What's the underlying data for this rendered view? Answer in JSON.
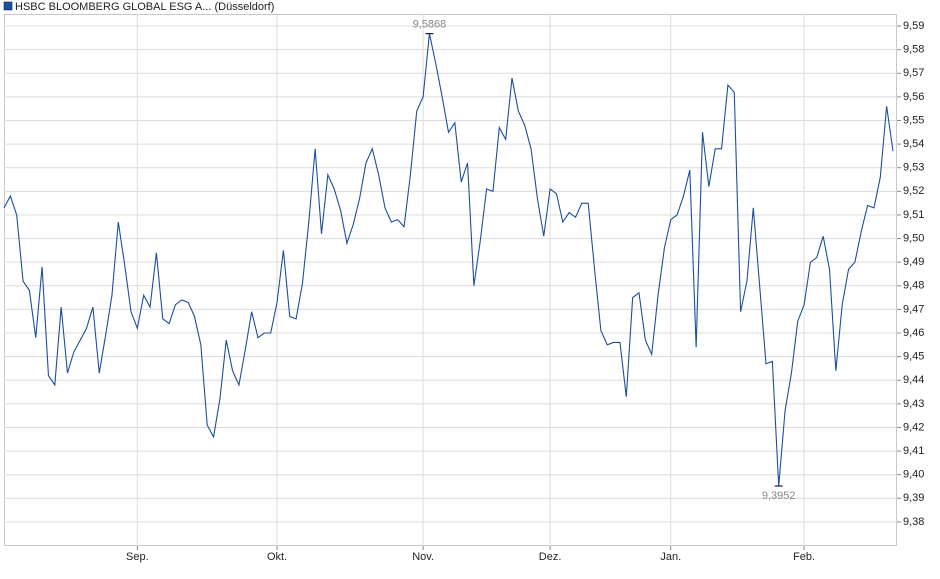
{
  "chart_data": {
    "type": "line",
    "legend": "top-left",
    "grid": true,
    "categories": [
      null,
      null,
      null,
      null,
      null,
      null,
      null,
      null,
      null,
      null,
      null,
      null,
      null,
      null,
      null,
      null,
      null,
      null,
      null,
      null,
      null,
      "Sep.",
      null,
      null,
      null,
      null,
      null,
      null,
      null,
      null,
      null,
      null,
      null,
      null,
      null,
      null,
      null,
      null,
      null,
      null,
      null,
      null,
      null,
      "Okt.",
      null,
      null,
      null,
      null,
      null,
      null,
      null,
      null,
      null,
      null,
      null,
      null,
      null,
      null,
      null,
      null,
      null,
      null,
      null,
      null,
      null,
      null,
      "Nov.",
      null,
      null,
      null,
      null,
      null,
      null,
      null,
      null,
      null,
      null,
      null,
      null,
      null,
      null,
      null,
      null,
      null,
      null,
      null,
      "Dez.",
      null,
      null,
      null,
      null,
      null,
      null,
      null,
      null,
      null,
      null,
      null,
      null,
      null,
      null,
      null,
      null,
      null,
      null,
      "Jan.",
      null,
      null,
      null,
      null,
      null,
      null,
      null,
      null,
      null,
      null,
      null,
      null,
      null,
      null,
      null,
      null,
      null,
      null,
      null,
      null,
      "Feb.",
      null,
      null,
      null,
      null,
      null,
      null,
      null,
      null,
      null,
      null,
      null,
      null,
      null,
      null
    ],
    "series": [
      {
        "name": "HSBC BLOOMBERG GLOBAL ESG A... (Düsseldorf)",
        "color": "#1c4f9c",
        "values": [
          9.513,
          9.518,
          9.51,
          9.482,
          9.478,
          9.458,
          9.488,
          9.442,
          9.438,
          9.471,
          9.443,
          9.452,
          9.457,
          9.462,
          9.471,
          9.443,
          9.459,
          9.476,
          9.507,
          9.489,
          9.469,
          9.462,
          9.476,
          9.471,
          9.494,
          9.466,
          9.464,
          9.472,
          9.474,
          9.473,
          9.467,
          9.455,
          9.421,
          9.416,
          9.432,
          9.457,
          9.444,
          9.438,
          9.453,
          9.469,
          9.458,
          9.46,
          9.46,
          9.473,
          9.495,
          9.467,
          9.466,
          9.481,
          9.507,
          9.538,
          9.502,
          9.527,
          9.521,
          9.512,
          9.498,
          9.506,
          9.517,
          9.532,
          9.538,
          9.527,
          9.513,
          9.507,
          9.508,
          9.505,
          9.527,
          9.554,
          9.56,
          9.5868,
          9.574,
          9.56,
          9.545,
          9.549,
          9.524,
          9.532,
          9.48,
          9.499,
          9.521,
          9.52,
          9.547,
          9.542,
          9.568,
          9.554,
          9.548,
          9.538,
          9.517,
          9.501,
          9.521,
          9.519,
          9.507,
          9.511,
          9.509,
          9.515,
          9.515,
          9.487,
          9.461,
          9.455,
          9.456,
          9.456,
          9.433,
          9.475,
          9.477,
          9.457,
          9.451,
          9.476,
          9.496,
          9.508,
          9.51,
          9.518,
          9.529,
          9.454,
          9.545,
          9.522,
          9.538,
          9.538,
          9.565,
          9.562,
          9.469,
          9.482,
          9.513,
          9.48,
          9.447,
          9.448,
          9.3952,
          9.427,
          9.443,
          9.465,
          9.472,
          9.49,
          9.492,
          9.501,
          9.487,
          9.444,
          9.472,
          9.487,
          9.49,
          9.503,
          9.514,
          9.513,
          9.526,
          9.556,
          9.537
        ],
        "value_labels": [
          null,
          null,
          null,
          null,
          null,
          null,
          null,
          null,
          null,
          null,
          null,
          null,
          null,
          null,
          null,
          null,
          null,
          null,
          null,
          null,
          null,
          null,
          null,
          null,
          null,
          null,
          null,
          null,
          null,
          null,
          null,
          null,
          null,
          null,
          null,
          null,
          null,
          null,
          null,
          null,
          null,
          null,
          null,
          null,
          null,
          null,
          null,
          null,
          null,
          null,
          null,
          null,
          null,
          null,
          null,
          null,
          null,
          null,
          null,
          null,
          null,
          null,
          null,
          null,
          null,
          null,
          null,
          "9,5868",
          null,
          null,
          null,
          null,
          null,
          null,
          null,
          null,
          null,
          null,
          null,
          null,
          null,
          null,
          null,
          null,
          null,
          null,
          null,
          null,
          null,
          null,
          null,
          null,
          null,
          null,
          null,
          null,
          null,
          null,
          null,
          null,
          null,
          null,
          null,
          null,
          null,
          null,
          null,
          null,
          null,
          null,
          null,
          null,
          null,
          null,
          null,
          null,
          null,
          null,
          null,
          null,
          null,
          null,
          "9,3952",
          null,
          null,
          null,
          null,
          null,
          null,
          null,
          null,
          null,
          null,
          null,
          null,
          null,
          null,
          null,
          null,
          null,
          null
        ]
      }
    ],
    "ylim": [
      9.3698,
      9.5951
    ],
    "yticks": [
      {
        "value": 9.38,
        "label": "9,38"
      },
      {
        "value": 9.39,
        "label": "9,39"
      },
      {
        "value": 9.4,
        "label": "9,40"
      },
      {
        "value": 9.41,
        "label": "9,41"
      },
      {
        "value": 9.42,
        "label": "9,42"
      },
      {
        "value": 9.43,
        "label": "9,43"
      },
      {
        "value": 9.44,
        "label": "9,44"
      },
      {
        "value": 9.45,
        "label": "9,45"
      },
      {
        "value": 9.46,
        "label": "9,46"
      },
      {
        "value": 9.47,
        "label": "9,47"
      },
      {
        "value": 9.48,
        "label": "9,48"
      },
      {
        "value": 9.49,
        "label": "9,49"
      },
      {
        "value": 9.5,
        "label": "9,50"
      },
      {
        "value": 9.51,
        "label": "9,51"
      },
      {
        "value": 9.52,
        "label": "9,52"
      },
      {
        "value": 9.53,
        "label": "9,53"
      },
      {
        "value": 9.54,
        "label": "9,54"
      },
      {
        "value": 9.55,
        "label": "9,55"
      },
      {
        "value": 9.56,
        "label": "9,56"
      },
      {
        "value": 9.57,
        "label": "9,57"
      },
      {
        "value": 9.58,
        "label": "9,58"
      },
      {
        "value": 9.59,
        "label": "9,59"
      }
    ]
  }
}
